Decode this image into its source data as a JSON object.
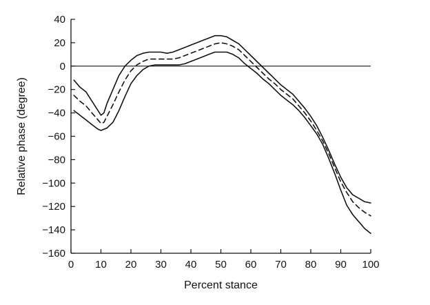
{
  "chart_data": {
    "type": "line",
    "title": "",
    "xlabel": "Percent stance",
    "ylabel": "Relative phase (degree)",
    "xlim": [
      0,
      100
    ],
    "ylim": [
      -160,
      40
    ],
    "x_ticks": [
      0,
      10,
      20,
      30,
      40,
      50,
      60,
      70,
      80,
      90,
      100
    ],
    "y_ticks": [
      40,
      20,
      0,
      -20,
      -40,
      -60,
      -80,
      -100,
      -120,
      -140,
      -160
    ],
    "reference_line_y": 0,
    "series": [
      {
        "style": "solid",
        "x": [
          1,
          3,
          5,
          7,
          9,
          10,
          11,
          12,
          14,
          16,
          18,
          20,
          22,
          24,
          26,
          28,
          30,
          32,
          34,
          36,
          38,
          40,
          42,
          44,
          46,
          48,
          50,
          52,
          54,
          56,
          58,
          60,
          62,
          64,
          66,
          68,
          70,
          72,
          74,
          76,
          78,
          80,
          82,
          84,
          86,
          88,
          90,
          92,
          94,
          96,
          98,
          100
        ],
        "y": [
          -12,
          -18,
          -22,
          -30,
          -38,
          -42,
          -40,
          -32,
          -20,
          -8,
          0,
          5,
          9,
          11,
          12,
          12,
          12,
          11,
          12,
          14,
          16,
          18,
          20,
          22,
          24,
          26,
          26,
          25,
          22,
          19,
          14,
          9,
          4,
          -1,
          -6,
          -11,
          -16,
          -20,
          -24,
          -30,
          -36,
          -43,
          -51,
          -61,
          -72,
          -84,
          -95,
          -104,
          -110,
          -113,
          -116,
          -117
        ]
      },
      {
        "style": "dashed",
        "x": [
          1,
          3,
          5,
          7,
          9,
          10,
          11,
          12,
          14,
          16,
          18,
          20,
          22,
          24,
          26,
          28,
          30,
          32,
          34,
          36,
          38,
          40,
          42,
          44,
          46,
          48,
          50,
          52,
          54,
          56,
          58,
          60,
          62,
          64,
          66,
          68,
          70,
          72,
          74,
          76,
          78,
          80,
          82,
          84,
          86,
          88,
          90,
          92,
          94,
          96,
          98,
          100
        ],
        "y": [
          -25,
          -30,
          -34,
          -40,
          -46,
          -49,
          -48,
          -43,
          -33,
          -22,
          -12,
          -4,
          1,
          4,
          6,
          6,
          6,
          6,
          6,
          7,
          9,
          11,
          13,
          15,
          17,
          19,
          20,
          19,
          17,
          14,
          9,
          4,
          -1,
          -6,
          -11,
          -15,
          -20,
          -24,
          -28,
          -34,
          -40,
          -47,
          -55,
          -64,
          -75,
          -87,
          -99,
          -108,
          -116,
          -121,
          -125,
          -128
        ]
      },
      {
        "style": "solid",
        "x": [
          1,
          3,
          5,
          7,
          9,
          10,
          11,
          12,
          14,
          16,
          18,
          20,
          22,
          24,
          26,
          28,
          30,
          32,
          34,
          36,
          38,
          40,
          42,
          44,
          46,
          48,
          50,
          52,
          54,
          56,
          58,
          60,
          62,
          64,
          66,
          68,
          70,
          72,
          74,
          76,
          78,
          80,
          82,
          84,
          86,
          88,
          90,
          92,
          94,
          96,
          98,
          100
        ],
        "y": [
          -38,
          -42,
          -46,
          -50,
          -54,
          -55,
          -54,
          -53,
          -48,
          -38,
          -26,
          -15,
          -8,
          -3,
          0,
          1,
          1,
          1,
          1,
          1,
          2,
          4,
          6,
          8,
          10,
          12,
          12,
          12,
          10,
          7,
          2,
          -2,
          -6,
          -11,
          -15,
          -20,
          -25,
          -29,
          -33,
          -38,
          -44,
          -51,
          -58,
          -67,
          -79,
          -92,
          -106,
          -119,
          -127,
          -133,
          -139,
          -143
        ]
      }
    ]
  }
}
